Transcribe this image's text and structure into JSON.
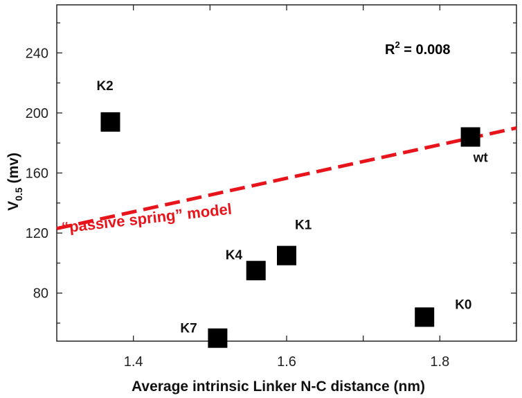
{
  "chart_data": {
    "type": "scatter",
    "xlabel": "Average intrinsic Linker N-C distance (nm)",
    "ylabel_main": "V",
    "ylabel_sub": "0.5",
    "ylabel_unit": " (mv)",
    "xlim": [
      1.3,
      1.9
    ],
    "ylim": [
      48,
      272
    ],
    "xticks": [
      1.4,
      1.6,
      1.8
    ],
    "xtick_labels": [
      "1.4",
      "1.6",
      "1.8"
    ],
    "yticks": [
      80,
      120,
      160,
      200,
      240
    ],
    "ytick_labels": [
      "80",
      "120",
      "160",
      "200",
      "240"
    ],
    "grid": false,
    "points": [
      {
        "label": "K2",
        "x": 1.37,
        "y": 194
      },
      {
        "label": "K7",
        "x": 1.51,
        "y": 50
      },
      {
        "label": "K4",
        "x": 1.56,
        "y": 95
      },
      {
        "label": "K1",
        "x": 1.6,
        "y": 105
      },
      {
        "label": "K0",
        "x": 1.78,
        "y": 64
      },
      {
        "label": "wt",
        "x": 1.84,
        "y": 184
      }
    ],
    "model_line": {
      "name": "“passive spring” model",
      "x": [
        1.3,
        1.9
      ],
      "y": [
        123,
        190
      ],
      "color": "#e8141c",
      "style": "dashed"
    },
    "annotation": {
      "main": "R",
      "sup": "2",
      "rest": " = 0.008"
    }
  }
}
